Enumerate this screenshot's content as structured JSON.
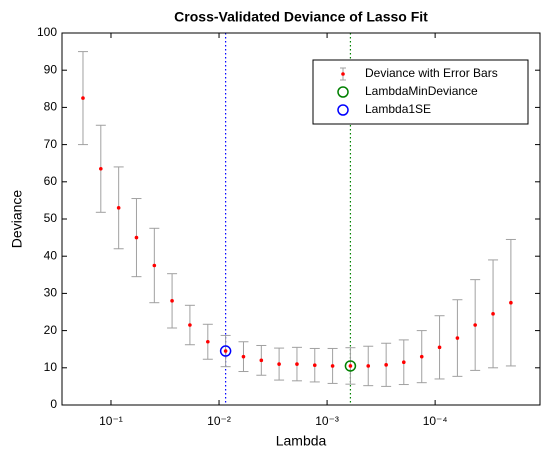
{
  "chart_data": {
    "type": "errorbar",
    "title": "Cross-Validated Deviance of Lasso Fit",
    "xlabel": "Lambda",
    "ylabel": "Deviance",
    "xscale": "log",
    "x": [
      0.1816,
      0.1242,
      0.0849,
      0.0581,
      0.0397,
      0.0272,
      0.0186,
      0.0127,
      0.00869,
      0.00594,
      0.00406,
      0.00278,
      0.0019,
      0.0013,
      0.000889,
      0.000608,
      0.000416,
      0.000284,
      0.000195,
      0.000133,
      9.1e-05,
      6.22e-05,
      4.26e-05,
      2.91e-05,
      1.99e-05
    ],
    "series": [
      {
        "name": "Deviance with Error Bars",
        "color": "#ff0000",
        "error_color": "#a0a0a0",
        "values": [
          82.5,
          63.5,
          53,
          45,
          37.5,
          28,
          21.5,
          17,
          14.5,
          13,
          12,
          11,
          11,
          10.7,
          10.5,
          10.5,
          10.5,
          10.8,
          11.5,
          13,
          15.5,
          18,
          21.5,
          24.5,
          27.5
        ],
        "errors": [
          12.5,
          11.7,
          11,
          10.5,
          10,
          7.3,
          5.3,
          4.7,
          4.2,
          4,
          4,
          4.3,
          4.5,
          4.5,
          4.7,
          4.9,
          5.3,
          5.8,
          6,
          7,
          8.5,
          10.3,
          12.2,
          14.5,
          17
        ]
      }
    ],
    "highlights": [
      {
        "name": "LambdaMinDeviance",
        "color": "#008000",
        "x": 0.000608,
        "value": 10.5
      },
      {
        "name": "Lambda1SE",
        "color": "#0000ff",
        "x": 0.00869,
        "value": 14.5
      }
    ],
    "xlim": [
      0.284,
      1.07e-05
    ],
    "ylim": [
      0,
      100
    ],
    "yticks": [
      0,
      10,
      20,
      30,
      40,
      50,
      60,
      70,
      80,
      90,
      100
    ],
    "xticks": [
      {
        "value": 0.1,
        "label": "10⁻¹"
      },
      {
        "value": 0.01,
        "label": "10⁻²"
      },
      {
        "value": 0.001,
        "label": "10⁻³"
      },
      {
        "value": 0.0001,
        "label": "10⁻⁴"
      }
    ],
    "legend": "northeast"
  }
}
